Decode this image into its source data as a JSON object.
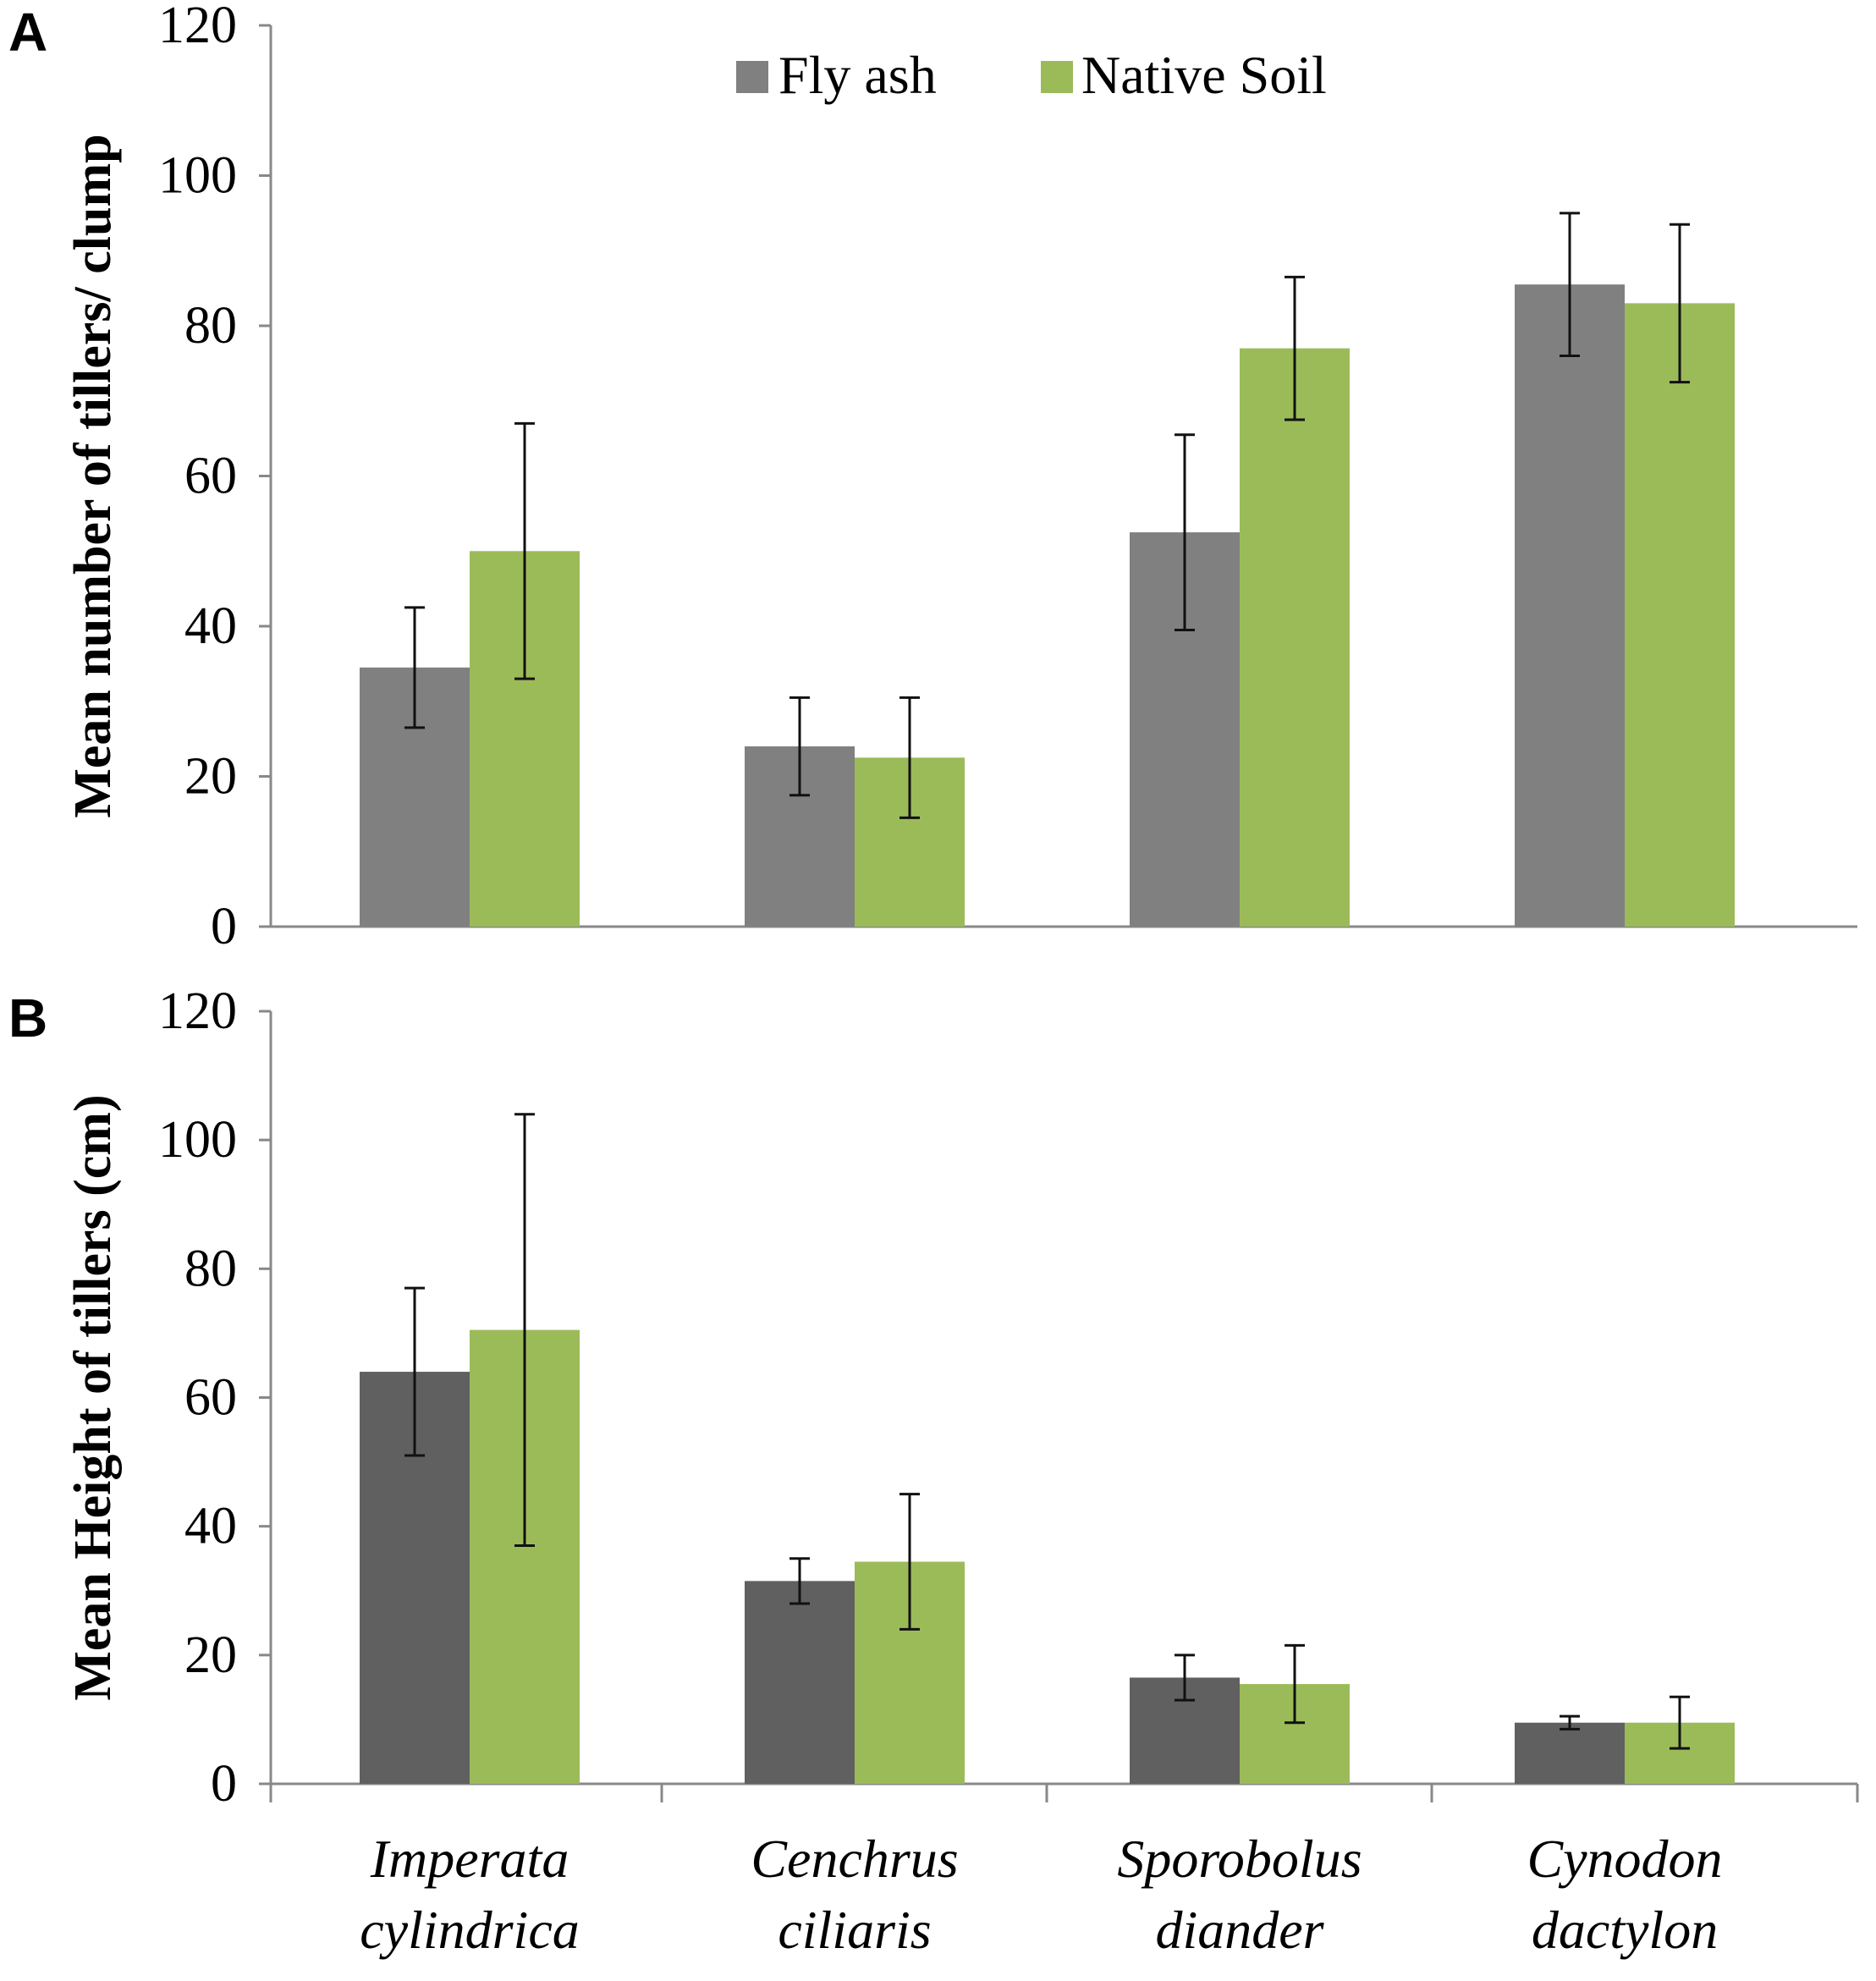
{
  "legend": [
    {
      "name": "Fly ash",
      "color": "#808080"
    },
    {
      "name": "Native Soil",
      "color": "#9bbb59"
    }
  ],
  "categories": [
    {
      "line1": "Imperata",
      "line2": "cylindrica"
    },
    {
      "line1": "Cenchrus",
      "line2": "ciliaris"
    },
    {
      "line1": "Sporobolus",
      "line2": "diander"
    },
    {
      "line1": "Cynodon",
      "line2": "dactylon"
    }
  ],
  "chart_data": [
    {
      "panel": "A",
      "type": "bar",
      "categories": [
        "Imperata cylindrica",
        "Cenchrus ciliaris",
        "Sporobolus diander",
        "Cynodon dactylon"
      ],
      "ylabel": "Mean number of tillers/ clump",
      "ylim": [
        0,
        120
      ],
      "yticks": [
        0,
        20,
        40,
        60,
        80,
        100,
        120
      ],
      "series": [
        {
          "name": "Fly ash",
          "color": "#808080",
          "values": [
            34.5,
            24,
            52.5,
            85.5
          ],
          "errors": [
            8,
            6.5,
            13,
            9.5
          ]
        },
        {
          "name": "Native Soil",
          "color": "#9bbb59",
          "values": [
            50,
            22.5,
            77,
            83
          ],
          "errors": [
            17,
            8,
            9.5,
            10.5
          ]
        }
      ]
    },
    {
      "panel": "B",
      "type": "bar",
      "categories": [
        "Imperata cylindrica",
        "Cenchrus ciliaris",
        "Sporobolus diander",
        "Cynodon dactylon"
      ],
      "ylabel": "Mean Height of tillers (cm)",
      "ylim": [
        0,
        120
      ],
      "yticks": [
        0,
        20,
        40,
        60,
        80,
        100,
        120
      ],
      "series": [
        {
          "name": "Fly ash",
          "color": "#606060",
          "values": [
            64,
            31.5,
            16.5,
            9.5
          ],
          "errors": [
            13,
            3.5,
            3.5,
            1
          ]
        },
        {
          "name": "Native Soil",
          "color": "#9bbb59",
          "values": [
            70.5,
            34.5,
            15.5,
            9.5
          ],
          "errors": [
            33.5,
            10.5,
            6,
            4
          ]
        }
      ]
    }
  ]
}
